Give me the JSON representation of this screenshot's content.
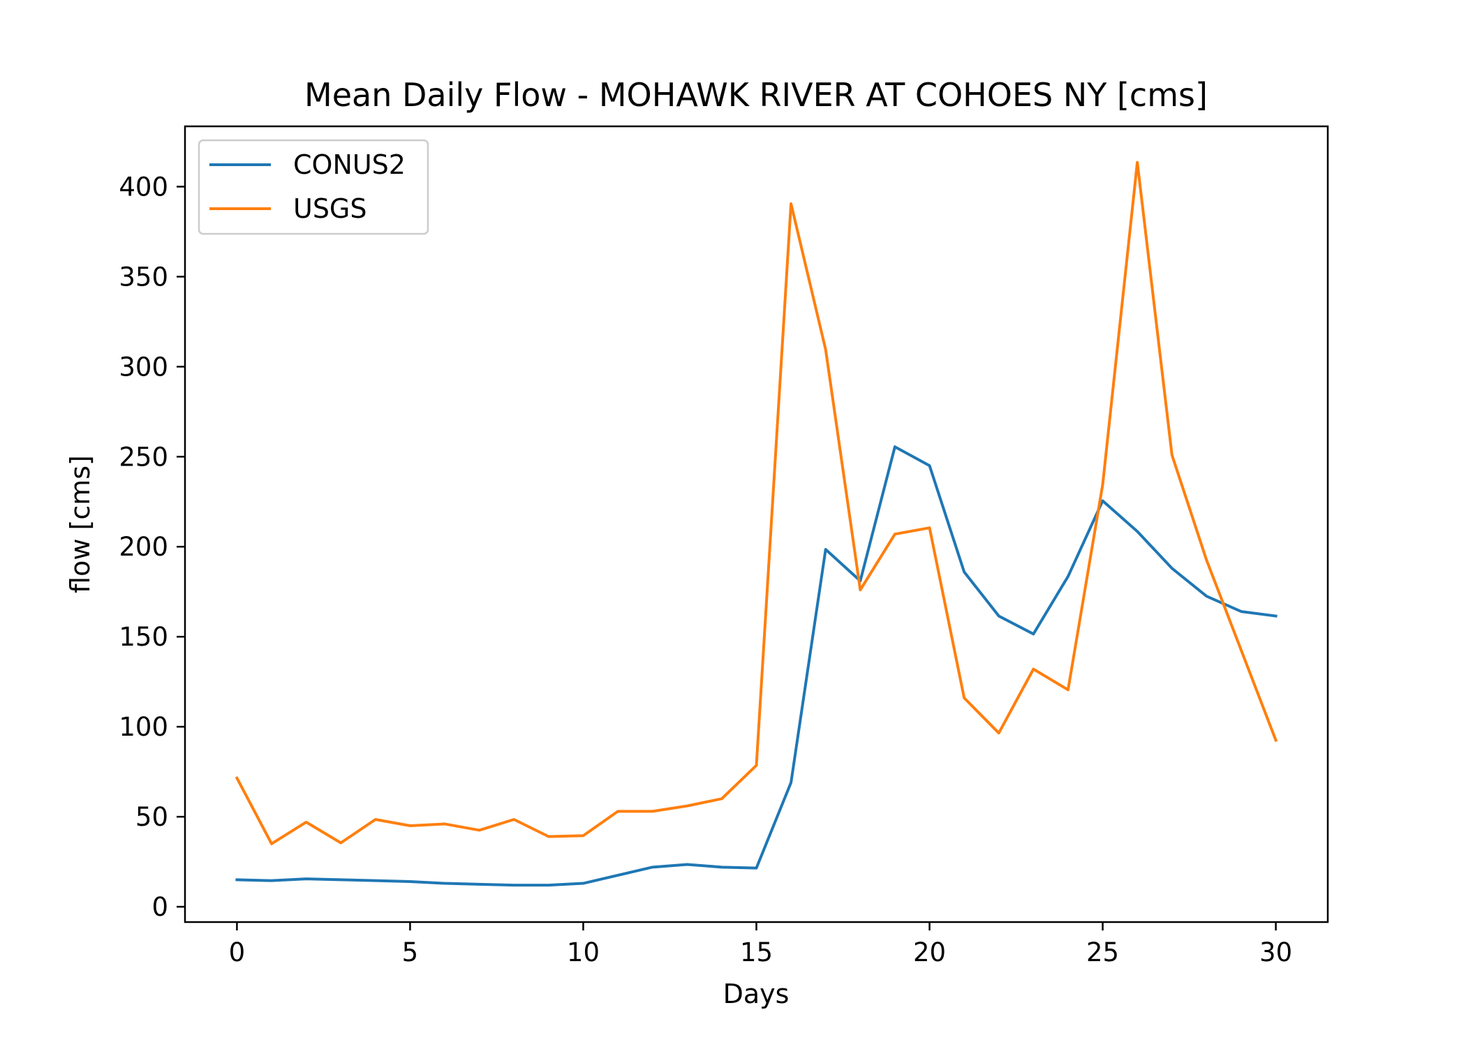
{
  "chart_data": {
    "type": "line",
    "title": "Mean Daily Flow - MOHAWK RIVER AT COHOES NY [cms]",
    "xlabel": "Days",
    "ylabel": "flow [cms]",
    "xlim": [
      -1.5,
      31.5
    ],
    "ylim": [
      -8.5,
      433.5
    ],
    "xticks": [
      0,
      5,
      10,
      15,
      20,
      25,
      30
    ],
    "yticks": [
      0,
      50,
      100,
      150,
      200,
      250,
      300,
      350,
      400
    ],
    "grid": false,
    "legend_position": "upper-left",
    "x": [
      0,
      1,
      2,
      3,
      4,
      5,
      6,
      7,
      8,
      9,
      10,
      11,
      12,
      13,
      14,
      15,
      16,
      17,
      18,
      19,
      20,
      21,
      22,
      23,
      24,
      25,
      26,
      27,
      28,
      29,
      30
    ],
    "series": [
      {
        "name": "CONUS2",
        "color": "#1f77b4",
        "values": [
          15,
          14.5,
          15.5,
          15,
          14.5,
          14,
          13,
          12.5,
          12,
          12,
          13,
          17.5,
          22,
          23.5,
          22,
          21.5,
          69,
          198.5,
          181,
          255.5,
          245,
          186,
          161.5,
          151.5,
          183.5,
          225.5,
          208.5,
          188,
          172.5,
          164,
          161.5
        ]
      },
      {
        "name": "USGS",
        "color": "#ff7f0e",
        "values": [
          71.5,
          35,
          47,
          35.5,
          48.5,
          45,
          46,
          42.5,
          48.5,
          39,
          39.5,
          53,
          53,
          56,
          60,
          78.5,
          390.5,
          309.5,
          176,
          207,
          210.5,
          116,
          96.5,
          132,
          120.5,
          234.5,
          413.5,
          251,
          192.5,
          142.5,
          92.5
        ]
      }
    ]
  }
}
